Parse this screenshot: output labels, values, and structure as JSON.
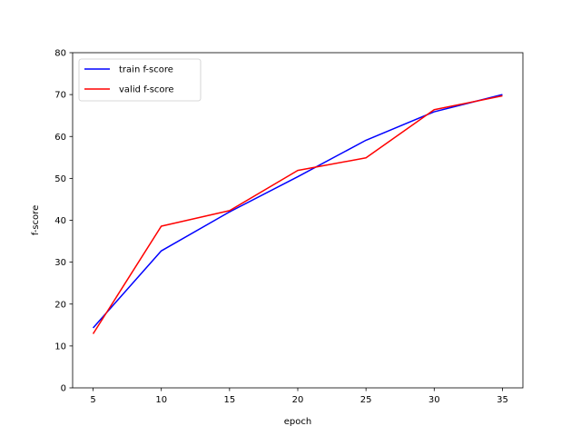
{
  "chart_data": {
    "type": "line",
    "title": "",
    "xlabel": "epoch",
    "ylabel": "f-score",
    "xlim": [
      3.5,
      36.5
    ],
    "ylim": [
      0,
      80
    ],
    "xticks": [
      5,
      10,
      15,
      20,
      25,
      30,
      35
    ],
    "yticks": [
      0,
      10,
      20,
      30,
      40,
      50,
      60,
      70,
      80
    ],
    "grid": false,
    "legend_position": "upper-left",
    "x": [
      5,
      10,
      15,
      20,
      25,
      30,
      35
    ],
    "series": [
      {
        "name": "train f-score",
        "color": "#0000ff",
        "values": [
          14.3,
          32.7,
          42.0,
          50.4,
          59.1,
          65.9,
          70.0
        ]
      },
      {
        "name": "valid f-score",
        "color": "#ff0000",
        "values": [
          12.9,
          38.6,
          42.3,
          51.9,
          54.9,
          66.4,
          69.7
        ]
      }
    ]
  }
}
